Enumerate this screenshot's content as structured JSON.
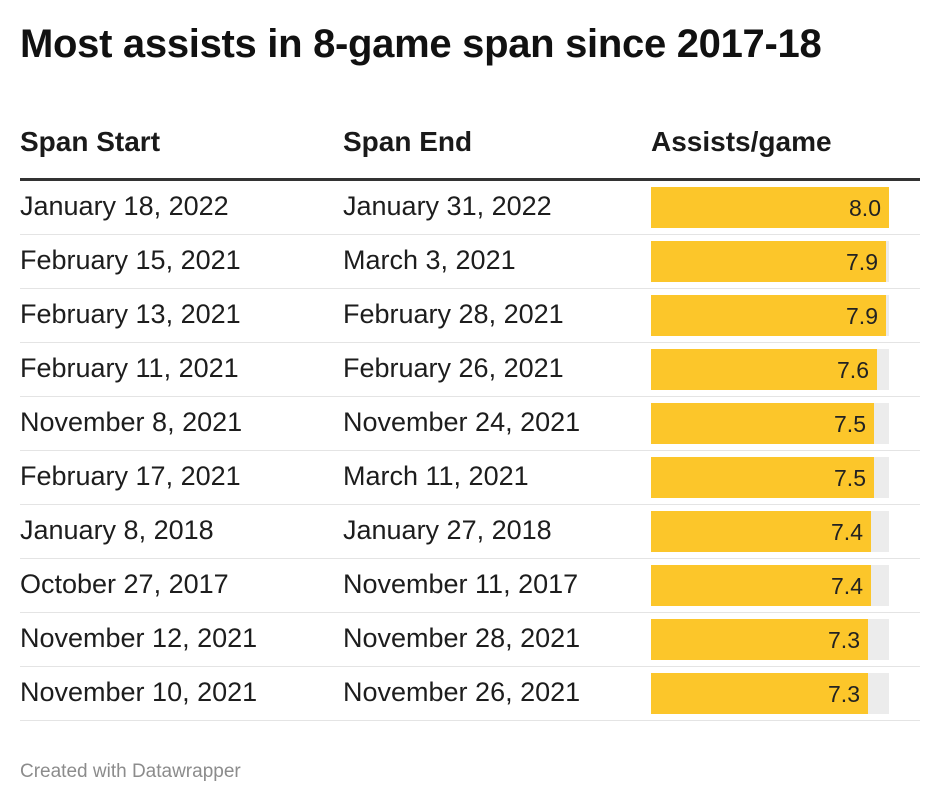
{
  "title": "Most assists in 8-game span since 2017-18",
  "footer": "Created with Datawrapper",
  "colors": {
    "bar": "#fcc62a",
    "track": "#ececec",
    "header_rule": "#333333"
  },
  "chart_data": {
    "type": "table",
    "title": "Most assists in 8-game span since 2017-18",
    "columns": [
      "Span Start",
      "Span End",
      "Assists/game"
    ],
    "bar_column": "Assists/game",
    "xlim": [
      0,
      8.0
    ],
    "rows": [
      {
        "start": "January 18, 2022",
        "end": "January 31, 2022",
        "value": 8.0,
        "label": "8.0"
      },
      {
        "start": "February 15, 2021",
        "end": "March 3, 2021",
        "value": 7.9,
        "label": "7.9"
      },
      {
        "start": "February 13, 2021",
        "end": "February 28, 2021",
        "value": 7.9,
        "label": "7.9"
      },
      {
        "start": "February 11, 2021",
        "end": "February 26, 2021",
        "value": 7.6,
        "label": "7.6"
      },
      {
        "start": "November 8, 2021",
        "end": "November 24, 2021",
        "value": 7.5,
        "label": "7.5"
      },
      {
        "start": "February 17, 2021",
        "end": "March 11, 2021",
        "value": 7.5,
        "label": "7.5"
      },
      {
        "start": "January 8, 2018",
        "end": "January 27, 2018",
        "value": 7.4,
        "label": "7.4"
      },
      {
        "start": "October 27, 2017",
        "end": "November 11, 2017",
        "value": 7.4,
        "label": "7.4"
      },
      {
        "start": "November 12, 2021",
        "end": "November 28, 2021",
        "value": 7.3,
        "label": "7.3"
      },
      {
        "start": "November 10, 2021",
        "end": "November 26, 2021",
        "value": 7.3,
        "label": "7.3"
      }
    ]
  }
}
